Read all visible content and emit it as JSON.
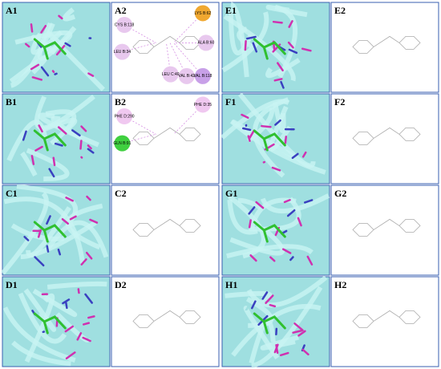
{
  "panels": [
    {
      "label": "A1"
    },
    {
      "label": "A2",
      "residues": [
        {
          "text": "LEU B:34",
          "color": "#e8c8ee"
        },
        {
          "text": "LYS B:62",
          "color": "#f0a830"
        },
        {
          "text": "CYS B:118",
          "color": "#e8c8ee"
        },
        {
          "text": "ALA B:60",
          "color": "#e8c8ee"
        },
        {
          "text": "LEU C:40",
          "color": "#e8c8ee"
        },
        {
          "text": "VAL B:42",
          "color": "#e8c8ee"
        },
        {
          "text": "VAL B:118",
          "color": "#c8a0e8"
        }
      ]
    },
    {
      "label": "E1"
    },
    {
      "label": "E2"
    },
    {
      "label": "B1"
    },
    {
      "label": "B2",
      "residues": [
        {
          "text": "GLN B:91",
          "color": "#40d040"
        },
        {
          "text": "PHE D:35",
          "color": "#f0c8f0"
        },
        {
          "text": "PHE D:290",
          "color": "#f0c8f0"
        }
      ]
    },
    {
      "label": "F1"
    },
    {
      "label": "F2"
    },
    {
      "label": "C1"
    },
    {
      "label": "C2"
    },
    {
      "label": "G1"
    },
    {
      "label": "G2"
    },
    {
      "label": "D1"
    },
    {
      "label": "D2"
    },
    {
      "label": "H1"
    },
    {
      "label": "H2"
    }
  ]
}
